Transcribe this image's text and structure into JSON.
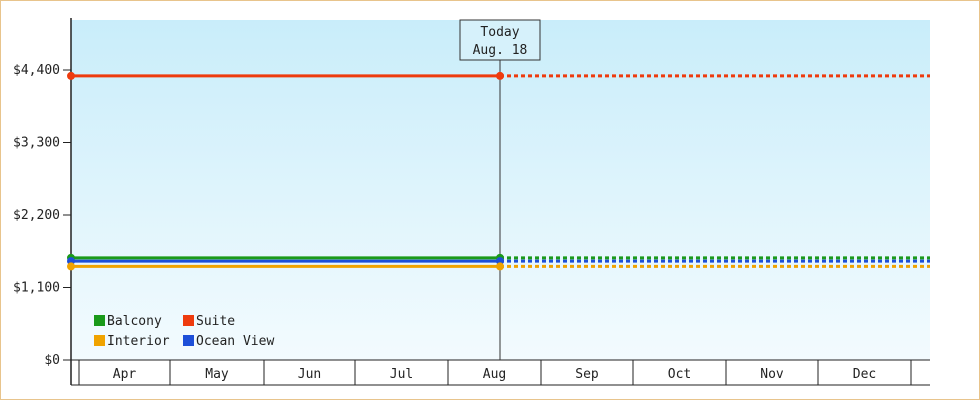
{
  "chart_data": {
    "type": "line",
    "y_tick_labels": [
      "$0",
      "$1,100",
      "$2,200",
      "$3,300",
      "$4,400"
    ],
    "y_tick_values": [
      0,
      1100,
      2200,
      3300,
      4400
    ],
    "ylim": [
      0,
      4400
    ],
    "categories": [
      "Apr",
      "May",
      "Jun",
      "Jul",
      "Aug",
      "Sep",
      "Oct",
      "Nov",
      "Dec"
    ],
    "today_label": [
      "Today",
      "Aug. 18"
    ],
    "today_index": 4,
    "series": [
      {
        "name": "Suite",
        "value": 4310,
        "color": "#ee3b0e"
      },
      {
        "name": "Balcony",
        "value": 1550,
        "color": "#1a9a1a"
      },
      {
        "name": "Ocean View",
        "value": 1500,
        "color": "#1d4fd8"
      },
      {
        "name": "Interior",
        "value": 1420,
        "color": "#f0a300"
      }
    ],
    "legend": [
      {
        "name": "Balcony",
        "color": "#1a9a1a"
      },
      {
        "name": "Suite",
        "color": "#ee3b0e"
      },
      {
        "name": "Interior",
        "color": "#f0a300"
      },
      {
        "name": "Ocean View",
        "color": "#1d4fd8"
      }
    ],
    "grid": false,
    "legend_position": "bottom-left"
  }
}
